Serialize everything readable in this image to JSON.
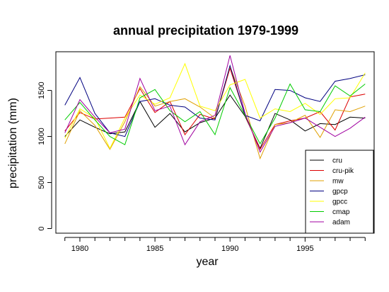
{
  "chart_data": {
    "type": "line",
    "title": "annual precipitation 1979-1999",
    "xlabel": "year",
    "ylabel": "precipitation (mm)",
    "x": [
      1979,
      1980,
      1981,
      1982,
      1983,
      1984,
      1985,
      1986,
      1987,
      1988,
      1989,
      1990,
      1991,
      1992,
      1993,
      1994,
      1995,
      1996,
      1997,
      1998,
      1999
    ],
    "xlim": [
      1978.4,
      1999.6
    ],
    "ylim": [
      -50,
      1920
    ],
    "xticks": [
      1980,
      1985,
      1990,
      1995
    ],
    "yticks": [
      0,
      500,
      1000,
      1500
    ],
    "grid": false,
    "legend_position": "bottom-right",
    "series": [
      {
        "name": "cru",
        "color": "#000000",
        "values": [
          1000,
          1180,
          1100,
          1030,
          1050,
          1380,
          1100,
          1250,
          1050,
          1150,
          1200,
          1450,
          1220,
          870,
          1250,
          1180,
          1060,
          1140,
          1130,
          1210,
          1200
        ]
      },
      {
        "name": "cru-pik",
        "color": "#dd0000",
        "values": [
          1060,
          1260,
          1190,
          1200,
          1210,
          1520,
          1260,
          1380,
          1020,
          1240,
          1190,
          1740,
          1230,
          860,
          1130,
          1170,
          1200,
          1270,
          1070,
          1430,
          1460
        ]
      },
      {
        "name": "mw",
        "color": "#e0a000",
        "values": [
          920,
          1280,
          1120,
          860,
          1160,
          1540,
          1330,
          1380,
          1410,
          1320,
          1200,
          1760,
          1330,
          760,
          1130,
          1150,
          1230,
          990,
          1290,
          1270,
          1330
        ]
      },
      {
        "name": "gpcp",
        "color": "#000080",
        "values": [
          1340,
          1640,
          1250,
          1040,
          1000,
          1380,
          1410,
          1340,
          1320,
          1200,
          1180,
          1770,
          1230,
          1170,
          1510,
          1500,
          1420,
          1380,
          1600,
          1630,
          1670
        ]
      },
      {
        "name": "gpcc",
        "color": "#ffff00",
        "values": [
          980,
          1300,
          1200,
          870,
          1200,
          1450,
          1350,
          1420,
          1790,
          1330,
          1280,
          1560,
          1620,
          1200,
          1300,
          1270,
          1360,
          1240,
          1410,
          1420,
          1690
        ]
      },
      {
        "name": "cmap",
        "color": "#00cc00",
        "values": [
          1180,
          1370,
          1180,
          1000,
          910,
          1420,
          1510,
          1280,
          1160,
          1270,
          1020,
          1530,
          1230,
          920,
          1200,
          1570,
          1290,
          1270,
          1550,
          1440,
          1570
        ]
      },
      {
        "name": "adam",
        "color": "#a000a0",
        "values": [
          1040,
          1400,
          1210,
          1040,
          1080,
          1630,
          1280,
          1330,
          910,
          1160,
          1230,
          1880,
          1250,
          830,
          1110,
          1150,
          1200,
          1100,
          1000,
          1090,
          1210
        ]
      }
    ]
  }
}
